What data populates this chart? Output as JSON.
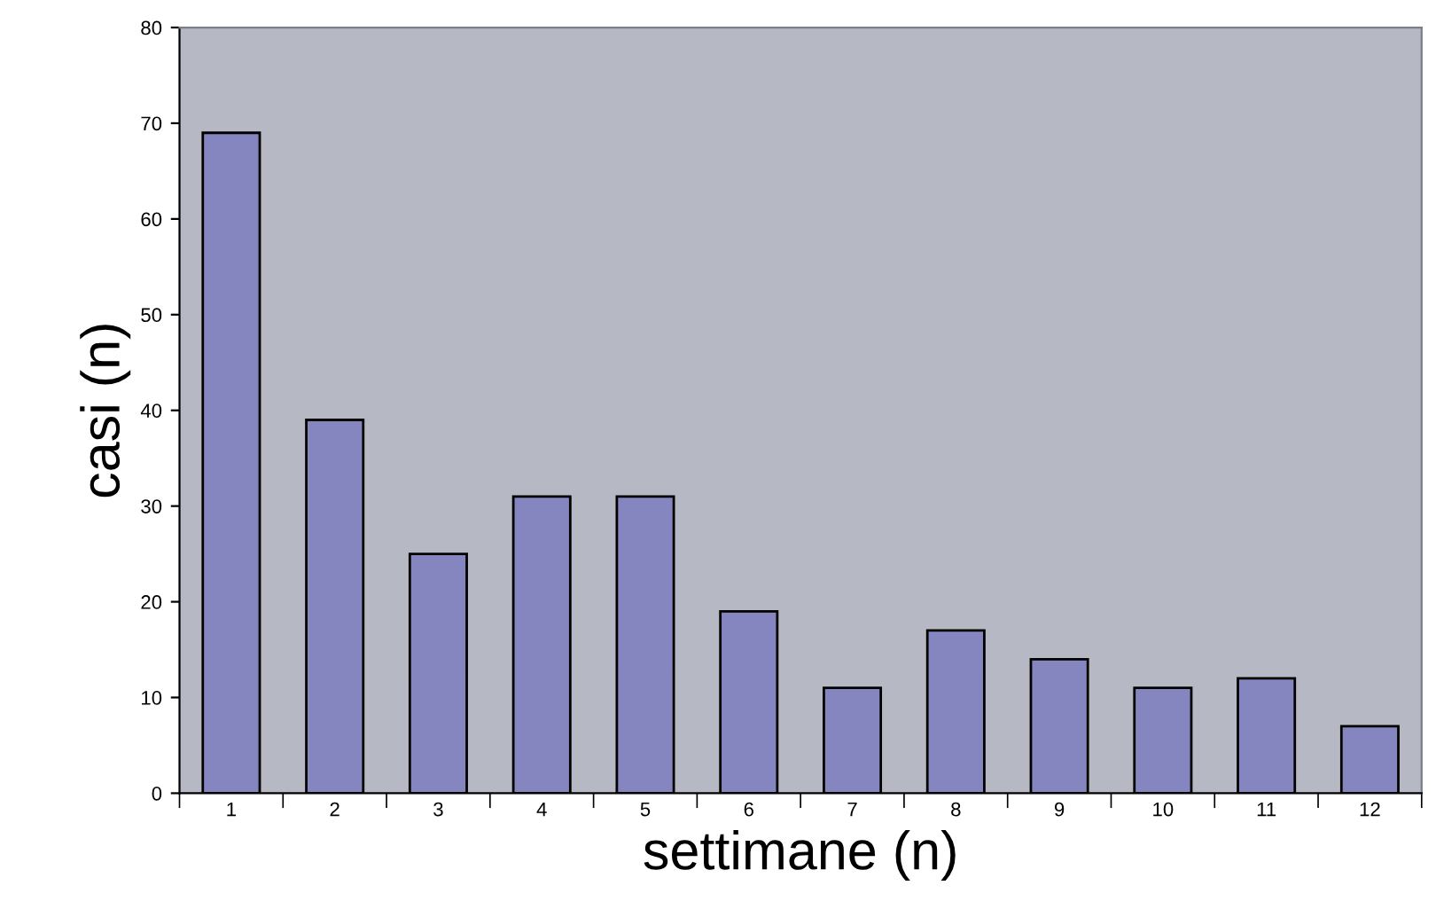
{
  "chart_data": {
    "type": "bar",
    "xlabel": "settimane (n)",
    "ylabel": "casi (n)",
    "categories": [
      "1",
      "2",
      "3",
      "4",
      "5",
      "6",
      "7",
      "8",
      "9",
      "10",
      "11",
      "12"
    ],
    "values": [
      69,
      39,
      25,
      31,
      31,
      19,
      11,
      17,
      14,
      11,
      12,
      7
    ],
    "color": "#8585c0",
    "ylim": [
      0,
      80
    ],
    "yticks": [
      0,
      10,
      20,
      30,
      40,
      50,
      60,
      70,
      80
    ],
    "grid": false,
    "legend": false
  }
}
